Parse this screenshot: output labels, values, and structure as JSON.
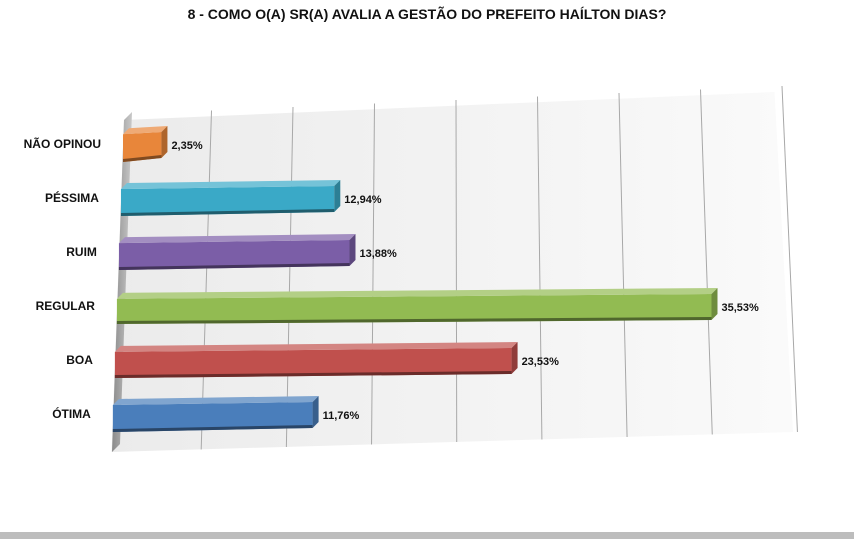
{
  "chart_data": {
    "type": "bar",
    "orientation": "horizontal",
    "title": "8 - COMO O(A) SR(A) AVALIA A GESTÃO DO PREFEITO HAÍLTON DIAS?",
    "categories": [
      "NÃO OPINOU",
      "PÉSSIMA",
      "RUIM",
      "REGULAR",
      "BOA",
      "ÓTIMA"
    ],
    "values": [
      2.35,
      12.94,
      13.88,
      35.53,
      23.53,
      11.76
    ],
    "value_labels": [
      "2,35%",
      "12,94%",
      "13,88%",
      "35,53%",
      "23,53%",
      "11,76%"
    ],
    "colors": [
      "#e8863a",
      "#3aa9c7",
      "#7b5ea7",
      "#92bb52",
      "#c0504d",
      "#4a7ebb"
    ],
    "xlim": [
      0,
      40
    ],
    "grid": true,
    "legend": "none"
  }
}
